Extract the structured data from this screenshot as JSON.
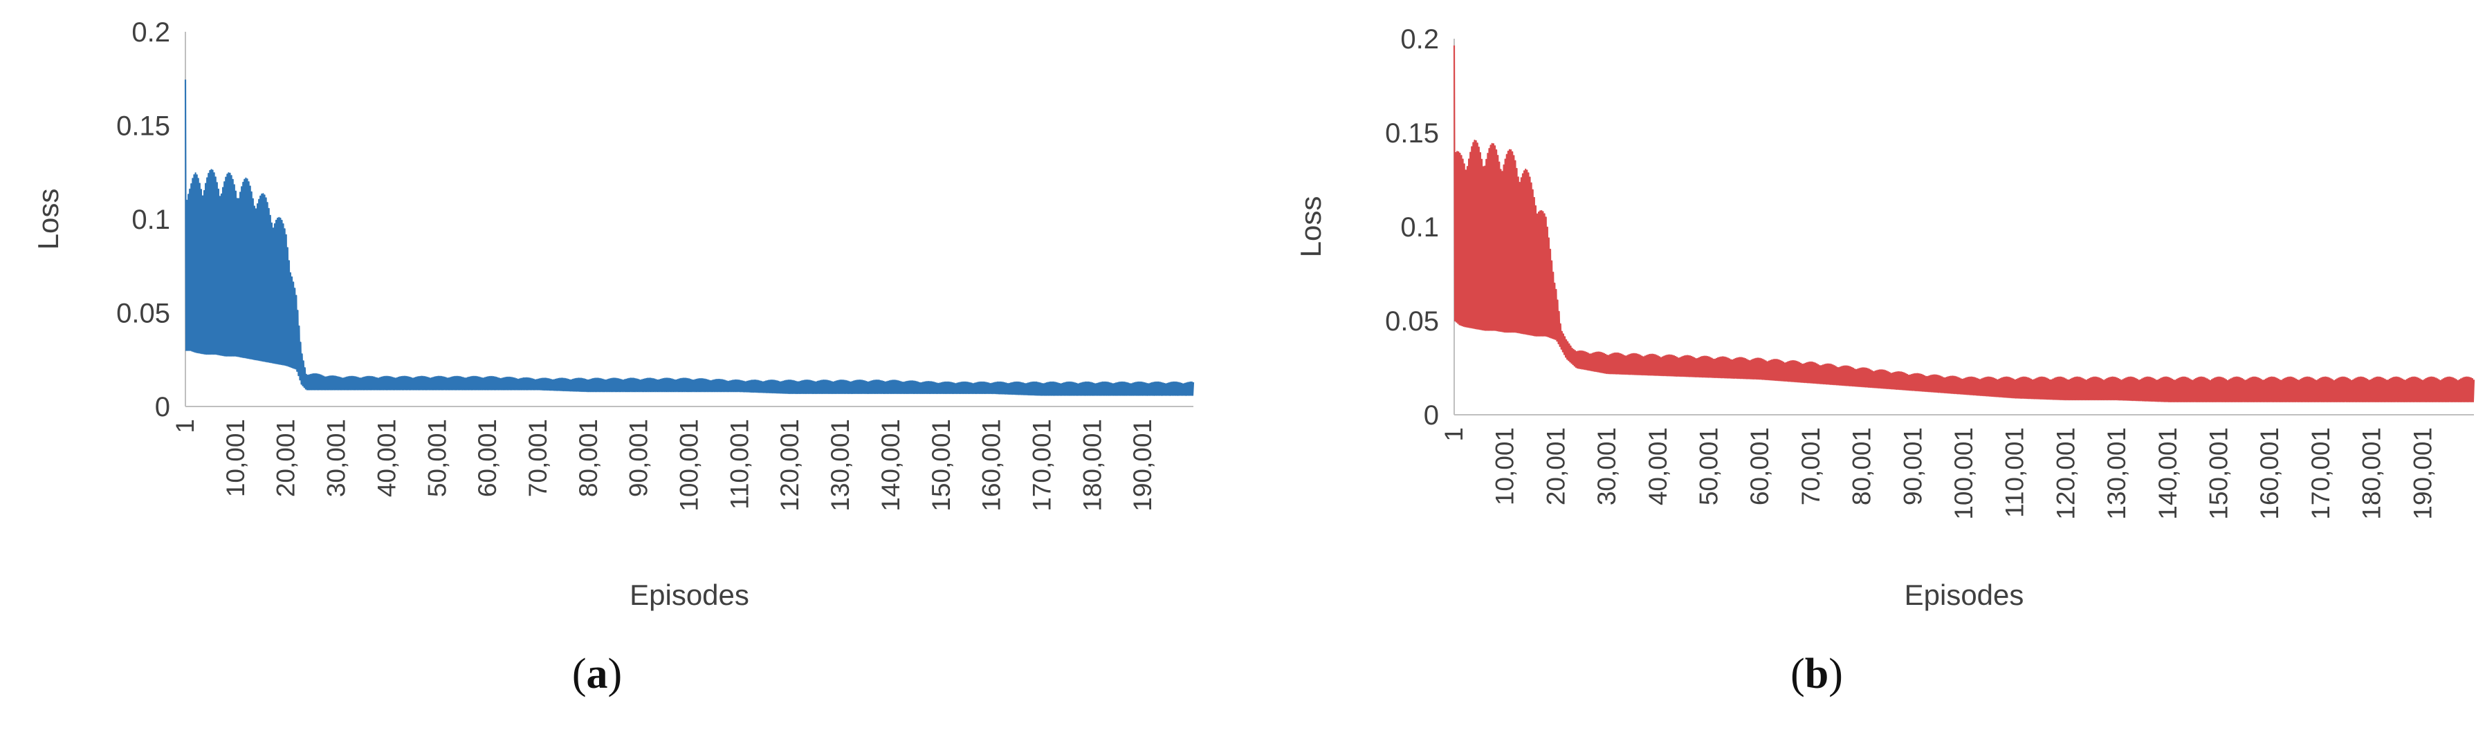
{
  "chart_data": [
    {
      "type": "line",
      "panel_label": "a",
      "xlabel": "Episodes",
      "ylabel": "Loss",
      "ylim": [
        0,
        0.2
      ],
      "y_ticks": [
        "0",
        "0.05",
        "0.1",
        "0.15",
        "0.2"
      ],
      "y_tick_values": [
        0,
        0.05,
        0.1,
        0.15,
        0.2
      ],
      "x_ticks": [
        "1",
        "10,001",
        "20,001",
        "30,001",
        "40,001",
        "50,001",
        "60,001",
        "70,001",
        "80,001",
        "90,001",
        "100,001",
        "110,001",
        "120,001",
        "130,001",
        "140,001",
        "150,001",
        "160,001",
        "170,001",
        "180,001",
        "190,001"
      ],
      "x_tick_values": [
        1,
        10001,
        20001,
        30001,
        40001,
        50001,
        60001,
        70001,
        80001,
        90001,
        100001,
        110001,
        120001,
        130001,
        140001,
        150001,
        160001,
        170001,
        180001,
        190001
      ],
      "xlim": [
        1,
        200000
      ],
      "color": "#2e75b6",
      "grid": false,
      "series": [
        {
          "x": [
            1,
            200,
            1000,
            2000,
            4000,
            6000,
            8000,
            10000,
            12000,
            14000,
            16000,
            18000,
            20000,
            22000,
            23000,
            24000,
            30000,
            40000,
            50000,
            60000,
            70000,
            80000,
            90000,
            100000,
            110000,
            120000,
            130000,
            140000,
            150000,
            160000,
            170000,
            180000,
            190000,
            200000
          ],
          "upper": [
            0.2,
            0.12,
            0.12,
            0.125,
            0.127,
            0.126,
            0.125,
            0.124,
            0.122,
            0.118,
            0.112,
            0.105,
            0.095,
            0.06,
            0.03,
            0.018,
            0.016,
            0.016,
            0.016,
            0.016,
            0.015,
            0.015,
            0.015,
            0.015,
            0.014,
            0.014,
            0.014,
            0.014,
            0.013,
            0.013,
            0.013,
            0.013,
            0.013,
            0.013
          ],
          "lower": [
            0.03,
            0.03,
            0.03,
            0.029,
            0.028,
            0.028,
            0.027,
            0.027,
            0.026,
            0.025,
            0.024,
            0.023,
            0.022,
            0.02,
            0.012,
            0.009,
            0.009,
            0.009,
            0.009,
            0.009,
            0.009,
            0.008,
            0.008,
            0.008,
            0.008,
            0.007,
            0.007,
            0.007,
            0.007,
            0.007,
            0.006,
            0.006,
            0.006,
            0.006
          ]
        }
      ]
    },
    {
      "type": "line",
      "panel_label": "b",
      "xlabel": "Episodes",
      "ylabel": "Loss",
      "ylim": [
        0,
        0.2
      ],
      "y_ticks": [
        "0",
        "0.05",
        "0.1",
        "0.15",
        "0.2"
      ],
      "y_tick_values": [
        0,
        0.05,
        0.1,
        0.15,
        0.2
      ],
      "x_ticks": [
        "1",
        "10,001",
        "20,001",
        "30,001",
        "40,001",
        "50,001",
        "60,001",
        "70,001",
        "80,001",
        "90,001",
        "100,001",
        "110,001",
        "120,001",
        "130,001",
        "140,001",
        "150,001",
        "160,001",
        "170,001",
        "180,001",
        "190,001"
      ],
      "x_tick_values": [
        1,
        10001,
        20001,
        30001,
        40001,
        50001,
        60001,
        70001,
        80001,
        90001,
        100001,
        110001,
        120001,
        130001,
        140001,
        150001,
        160001,
        170001,
        180001,
        190001
      ],
      "xlim": [
        1,
        200000
      ],
      "color": "#d9484a",
      "grid": false,
      "series": [
        {
          "x": [
            1,
            200,
            1000,
            2000,
            4000,
            6000,
            8000,
            10000,
            12000,
            14000,
            16000,
            18000,
            20000,
            21000,
            22000,
            24000,
            30000,
            40000,
            50000,
            60000,
            70000,
            80000,
            90000,
            100000,
            110000,
            120000,
            130000,
            140000,
            150000,
            160000,
            170000,
            180000,
            190000,
            200000
          ],
          "upper": [
            0.2,
            0.14,
            0.14,
            0.143,
            0.146,
            0.145,
            0.144,
            0.142,
            0.14,
            0.132,
            0.12,
            0.105,
            0.07,
            0.045,
            0.04,
            0.034,
            0.033,
            0.032,
            0.031,
            0.03,
            0.028,
            0.025,
            0.022,
            0.02,
            0.02,
            0.02,
            0.02,
            0.02,
            0.02,
            0.02,
            0.02,
            0.02,
            0.02,
            0.02
          ],
          "lower": [
            0.05,
            0.05,
            0.048,
            0.047,
            0.046,
            0.045,
            0.045,
            0.044,
            0.044,
            0.043,
            0.042,
            0.042,
            0.04,
            0.035,
            0.03,
            0.025,
            0.022,
            0.021,
            0.02,
            0.019,
            0.017,
            0.015,
            0.013,
            0.011,
            0.009,
            0.008,
            0.008,
            0.007,
            0.007,
            0.007,
            0.007,
            0.007,
            0.007,
            0.007
          ]
        }
      ]
    }
  ],
  "captions": {
    "a": "a",
    "b": "b"
  }
}
